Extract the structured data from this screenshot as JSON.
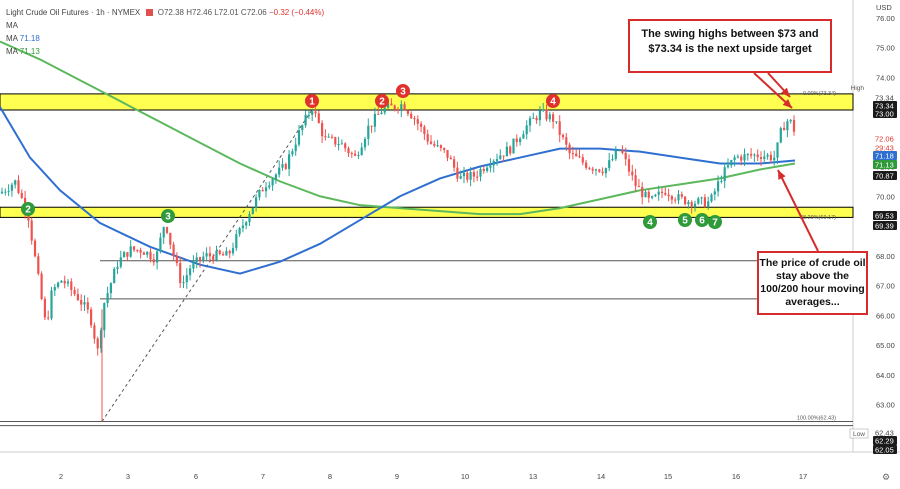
{
  "header": {
    "symbol": "Light Crude Oil Futures · 1h · NYMEX",
    "ohlc": "O72.38 H72.46 L72.01 C72.06",
    "change": "−0.32 (−0.44%)",
    "ma1_label": "MA",
    "ma2_label": "MA",
    "ma3_label": "MA",
    "ma2_value": "71.18",
    "ma3_value": "71.13"
  },
  "axis": {
    "currency": "USD",
    "y_ticks": [
      "76.00",
      "75.00",
      "74.00",
      "73.00",
      "72.00",
      "71.00",
      "70.00",
      "69.00",
      "68.00",
      "67.00",
      "66.00",
      "65.00",
      "64.00",
      "63.00",
      "62.00"
    ],
    "x_ticks": [
      "2",
      "3",
      "6",
      "7",
      "8",
      "9",
      "10",
      "13",
      "14",
      "15",
      "16",
      "17"
    ]
  },
  "price_tags": [
    {
      "text": "High",
      "value": null,
      "bg": "#ffffff",
      "fg": "#555555"
    },
    {
      "text": "73.34",
      "bg": "#ffffff",
      "fg": "#444444"
    },
    {
      "text": "73.34",
      "bg": "#1b1b1b",
      "fg": "#ffffff"
    },
    {
      "text": "73.00",
      "bg": "#1b1b1b",
      "fg": "#ffffff"
    },
    {
      "text": "72.06",
      "bg": "#ffffff",
      "fg": "#e0322d"
    },
    {
      "text": "29:43",
      "bg": "#ffffff",
      "fg": "#e0322d"
    },
    {
      "text": "71.18",
      "bg": "#2f6fd0",
      "fg": "#ffffff"
    },
    {
      "text": "71.13",
      "bg": "#2f9a3a",
      "fg": "#ffffff"
    },
    {
      "text": "70.87",
      "bg": "#1b1b1b",
      "fg": "#ffffff"
    },
    {
      "text": "69.53",
      "bg": "#1b1b1b",
      "fg": "#ffffff"
    },
    {
      "text": "69.39",
      "bg": "#1b1b1b",
      "fg": "#ffffff"
    },
    {
      "text": "62.43",
      "bg": "#ffffff",
      "fg": "#444444"
    },
    {
      "text": "62.29",
      "bg": "#1b1b1b",
      "fg": "#ffffff"
    },
    {
      "text": "62.05",
      "bg": "#1b1b1b",
      "fg": "#ffffff"
    },
    {
      "text": "Low",
      "bg": "#ffffff",
      "fg": "#555555"
    }
  ],
  "fib_labels": [
    "0.00%(73.34)",
    "38.20%(69.17)",
    "100.00%(62.43)"
  ],
  "callouts": {
    "top": "The swing highs between $73 and $73.34 is the next upside target",
    "bottom": "The price of crude oil stay above the 100/200 hour moving averages..."
  },
  "markers": [
    {
      "label": "1",
      "color": "#e0322d"
    },
    {
      "label": "2",
      "color": "#e0322d"
    },
    {
      "label": "3",
      "color": "#e0322d"
    },
    {
      "label": "4",
      "color": "#e0322d"
    },
    {
      "label": "2",
      "color": "#2f9a3a"
    },
    {
      "label": "3",
      "color": "#2f9a3a"
    },
    {
      "label": "4",
      "color": "#2f9a3a"
    },
    {
      "label": "5",
      "color": "#2f9a3a"
    },
    {
      "label": "6",
      "color": "#2f9a3a"
    },
    {
      "label": "7",
      "color": "#2f9a3a"
    }
  ],
  "colors": {
    "up": "#26a69a",
    "down": "#ef5350",
    "ma100": "#2f6fd0",
    "ma200": "#5cb85c",
    "zone": "#ffff33",
    "callout_border": "#d62c2c"
  },
  "chart_data": {
    "type": "candlestick",
    "title": "Light Crude Oil Futures · 1h · NYMEX",
    "ylim": [
      61.8,
      76.3
    ],
    "zones": [
      {
        "name": "resistance",
        "low": 73.0,
        "high": 73.34
      },
      {
        "name": "support",
        "low": 69.39,
        "high": 69.53
      }
    ],
    "levels": [
      67.83,
      66.55,
      62.43,
      62.29
    ],
    "fib": [
      {
        "pct": "0.00%",
        "price": 73.34
      },
      {
        "pct": "38.20%",
        "price": 69.17
      },
      {
        "pct": "100.00%",
        "price": 62.43
      }
    ],
    "anchors": [
      {
        "x": 0,
        "y": 70.1
      },
      {
        "x": 15,
        "y": 70.5
      },
      {
        "x": 28,
        "y": 69.4
      },
      {
        "x": 46,
        "y": 65.6
      },
      {
        "x": 52,
        "y": 66.8
      },
      {
        "x": 62,
        "y": 67.2
      },
      {
        "x": 78,
        "y": 66.6
      },
      {
        "x": 90,
        "y": 66.0
      },
      {
        "x": 99,
        "y": 64.6
      },
      {
        "x": 102,
        "y": 66.2
      },
      {
        "x": 118,
        "y": 67.8
      },
      {
        "x": 130,
        "y": 68.2
      },
      {
        "x": 142,
        "y": 68.2
      },
      {
        "x": 156,
        "y": 67.9
      },
      {
        "x": 165,
        "y": 69.2
      },
      {
        "x": 172,
        "y": 68.2
      },
      {
        "x": 182,
        "y": 67.0
      },
      {
        "x": 190,
        "y": 67.6
      },
      {
        "x": 205,
        "y": 68.0
      },
      {
        "x": 228,
        "y": 68.0
      },
      {
        "x": 248,
        "y": 69.4
      },
      {
        "x": 265,
        "y": 70.4
      },
      {
        "x": 285,
        "y": 71.0
      },
      {
        "x": 300,
        "y": 72.2
      },
      {
        "x": 312,
        "y": 73.0
      },
      {
        "x": 325,
        "y": 71.9
      },
      {
        "x": 340,
        "y": 71.8
      },
      {
        "x": 355,
        "y": 71.3
      },
      {
        "x": 368,
        "y": 72.3
      },
      {
        "x": 382,
        "y": 72.9
      },
      {
        "x": 403,
        "y": 73.1
      },
      {
        "x": 415,
        "y": 72.6
      },
      {
        "x": 430,
        "y": 71.8
      },
      {
        "x": 447,
        "y": 71.4
      },
      {
        "x": 460,
        "y": 70.6
      },
      {
        "x": 475,
        "y": 70.7
      },
      {
        "x": 490,
        "y": 71.2
      },
      {
        "x": 510,
        "y": 71.6
      },
      {
        "x": 525,
        "y": 72.3
      },
      {
        "x": 540,
        "y": 72.8
      },
      {
        "x": 553,
        "y": 72.6
      },
      {
        "x": 570,
        "y": 71.4
      },
      {
        "x": 590,
        "y": 71.0
      },
      {
        "x": 605,
        "y": 70.9
      },
      {
        "x": 620,
        "y": 71.6
      },
      {
        "x": 635,
        "y": 70.4
      },
      {
        "x": 650,
        "y": 69.8
      },
      {
        "x": 665,
        "y": 70.2
      },
      {
        "x": 680,
        "y": 69.9
      },
      {
        "x": 695,
        "y": 69.8
      },
      {
        "x": 710,
        "y": 69.8
      },
      {
        "x": 722,
        "y": 70.7
      },
      {
        "x": 735,
        "y": 71.3
      },
      {
        "x": 760,
        "y": 71.4
      },
      {
        "x": 775,
        "y": 71.3
      },
      {
        "x": 782,
        "y": 72.3
      },
      {
        "x": 789,
        "y": 72.6
      },
      {
        "x": 796,
        "y": 72.1
      }
    ],
    "ma100": [
      {
        "x": 0,
        "y": 73.0
      },
      {
        "x": 30,
        "y": 71.3
      },
      {
        "x": 60,
        "y": 70.2
      },
      {
        "x": 100,
        "y": 69.1
      },
      {
        "x": 150,
        "y": 68.3
      },
      {
        "x": 200,
        "y": 67.7
      },
      {
        "x": 240,
        "y": 67.4
      },
      {
        "x": 280,
        "y": 67.8
      },
      {
        "x": 320,
        "y": 68.4
      },
      {
        "x": 360,
        "y": 69.2
      },
      {
        "x": 400,
        "y": 70.0
      },
      {
        "x": 440,
        "y": 70.6
      },
      {
        "x": 480,
        "y": 71.0
      },
      {
        "x": 520,
        "y": 71.3
      },
      {
        "x": 560,
        "y": 71.6
      },
      {
        "x": 600,
        "y": 71.6
      },
      {
        "x": 640,
        "y": 71.5
      },
      {
        "x": 680,
        "y": 71.3
      },
      {
        "x": 720,
        "y": 71.1
      },
      {
        "x": 760,
        "y": 71.1
      },
      {
        "x": 795,
        "y": 71.2
      }
    ],
    "ma200": [
      {
        "x": 0,
        "y": 75.2
      },
      {
        "x": 40,
        "y": 74.6
      },
      {
        "x": 80,
        "y": 73.9
      },
      {
        "x": 120,
        "y": 73.2
      },
      {
        "x": 160,
        "y": 72.5
      },
      {
        "x": 200,
        "y": 71.8
      },
      {
        "x": 240,
        "y": 71.1
      },
      {
        "x": 280,
        "y": 70.5
      },
      {
        "x": 320,
        "y": 70.0
      },
      {
        "x": 360,
        "y": 69.7
      },
      {
        "x": 400,
        "y": 69.6
      },
      {
        "x": 440,
        "y": 69.5
      },
      {
        "x": 480,
        "y": 69.4
      },
      {
        "x": 520,
        "y": 69.4
      },
      {
        "x": 560,
        "y": 69.6
      },
      {
        "x": 600,
        "y": 69.9
      },
      {
        "x": 640,
        "y": 70.2
      },
      {
        "x": 680,
        "y": 70.4
      },
      {
        "x": 720,
        "y": 70.6
      },
      {
        "x": 760,
        "y": 70.9
      },
      {
        "x": 795,
        "y": 71.1
      }
    ]
  }
}
